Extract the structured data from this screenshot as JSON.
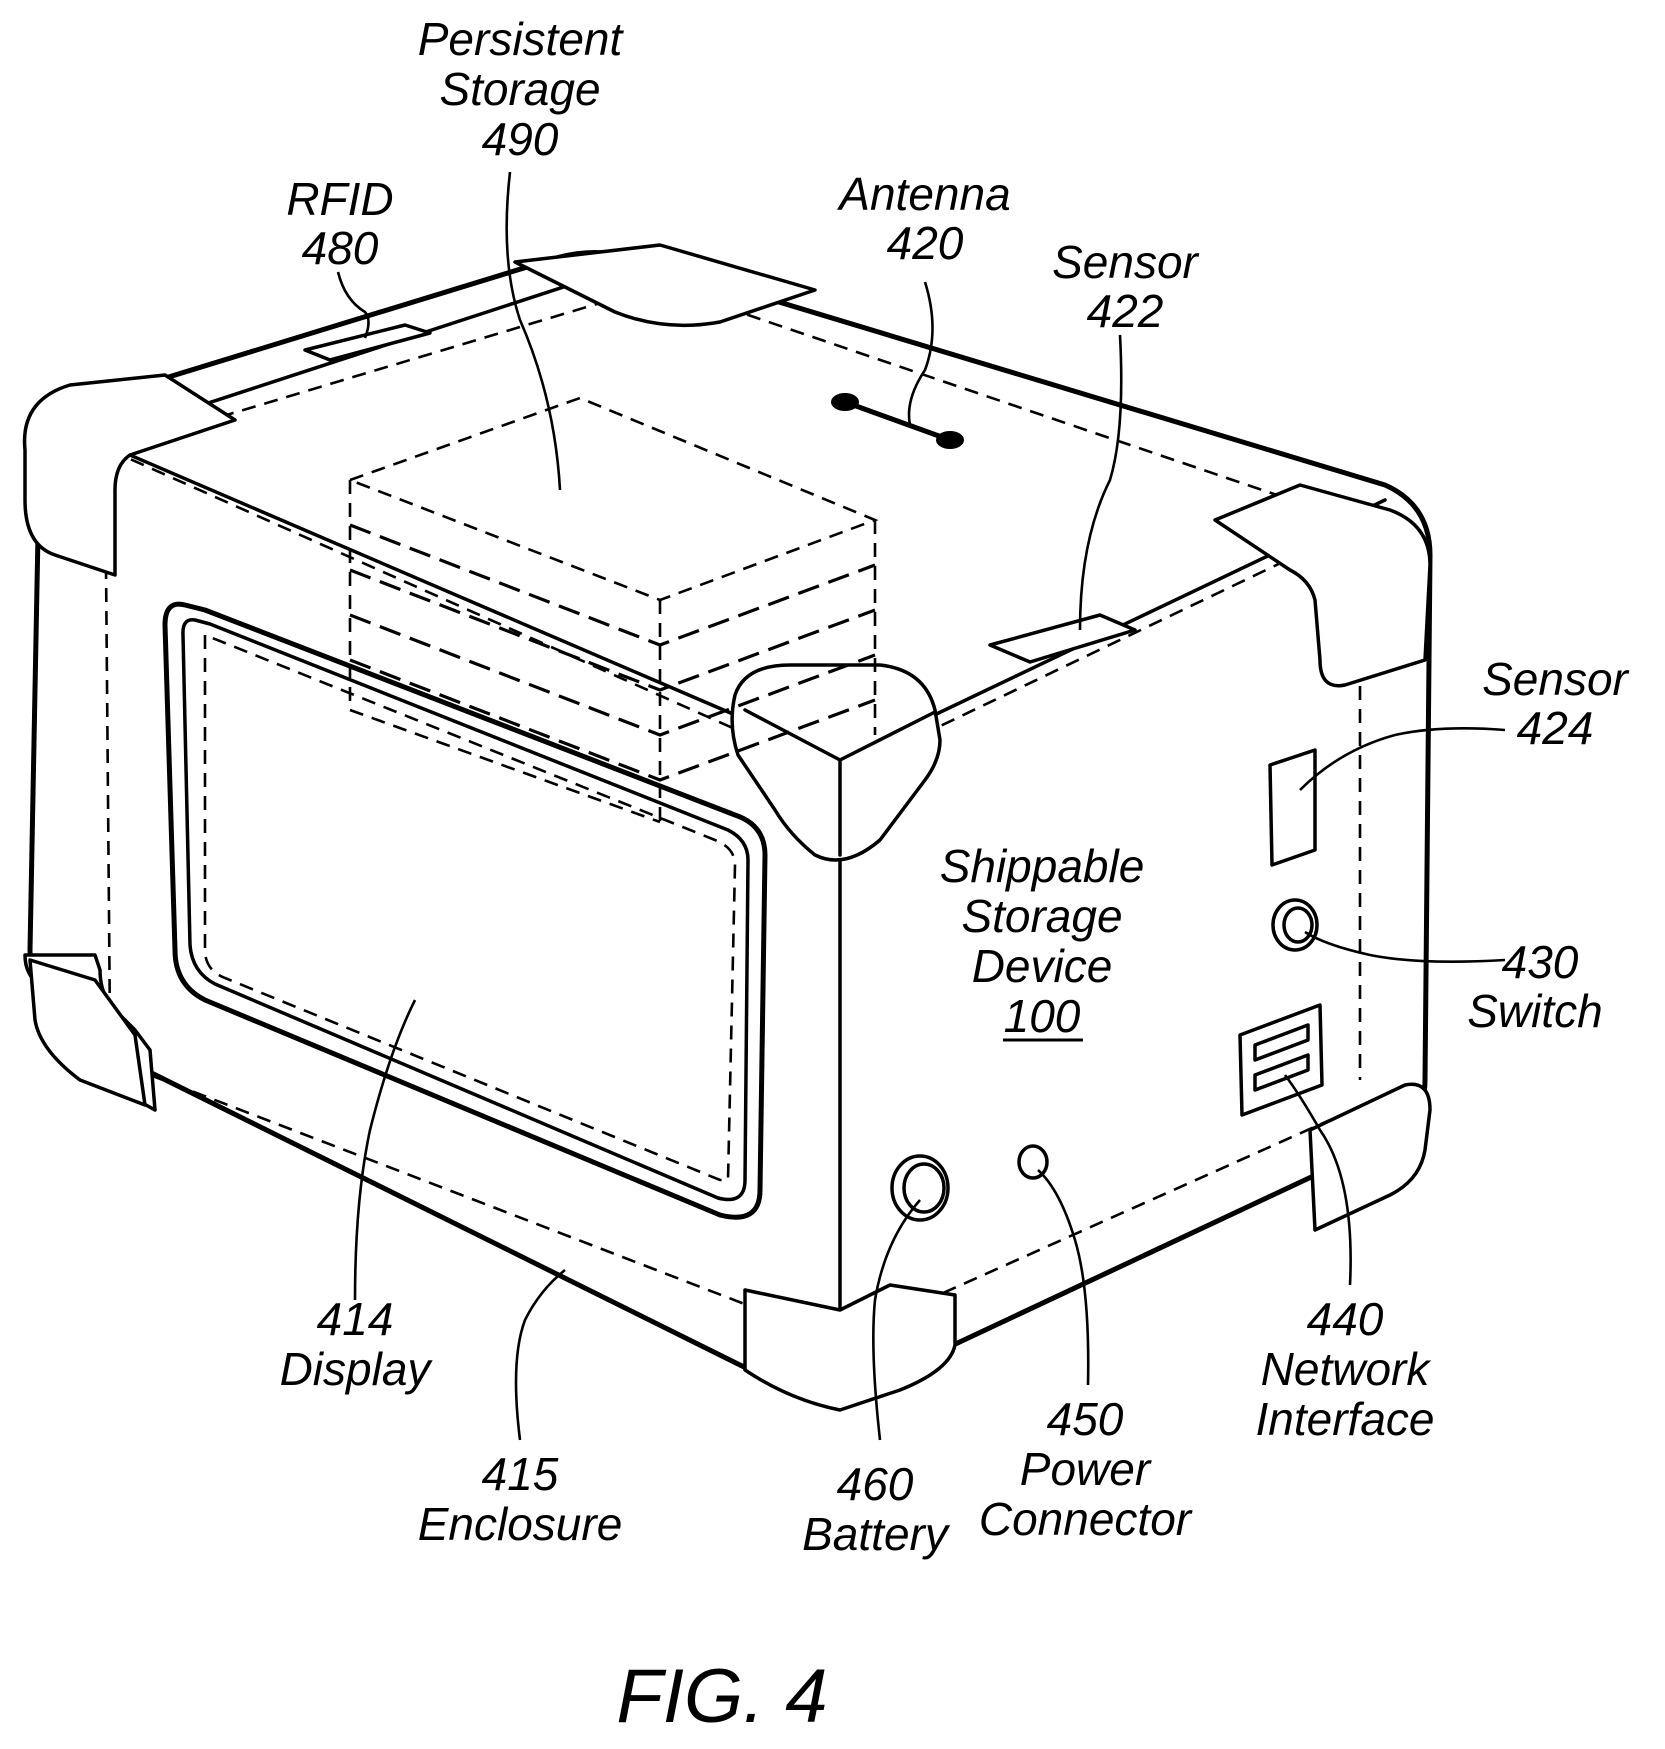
{
  "figure_label": "FIG. 4",
  "device": {
    "line1": "Shippable",
    "line2": "Storage",
    "line3": "Device",
    "ref": "100"
  },
  "labels": {
    "persistent_storage": {
      "line1": "Persistent",
      "line2": "Storage",
      "ref": "490"
    },
    "rfid": {
      "name": "RFID",
      "ref": "480"
    },
    "antenna": {
      "name": "Antenna",
      "ref": "420"
    },
    "sensor_422": {
      "name": "Sensor",
      "ref": "422"
    },
    "sensor_424": {
      "name": "Sensor",
      "ref": "424"
    },
    "switch": {
      "ref": "430",
      "name": "Switch"
    },
    "network_interface": {
      "ref": "440",
      "line1": "Network",
      "line2": "Interface"
    },
    "power_connector": {
      "ref": "450",
      "line1": "Power",
      "line2": "Connector"
    },
    "battery": {
      "ref": "460",
      "name": "Battery"
    },
    "enclosure": {
      "ref": "415",
      "name": "Enclosure"
    },
    "display": {
      "ref": "414",
      "name": "Display"
    }
  }
}
